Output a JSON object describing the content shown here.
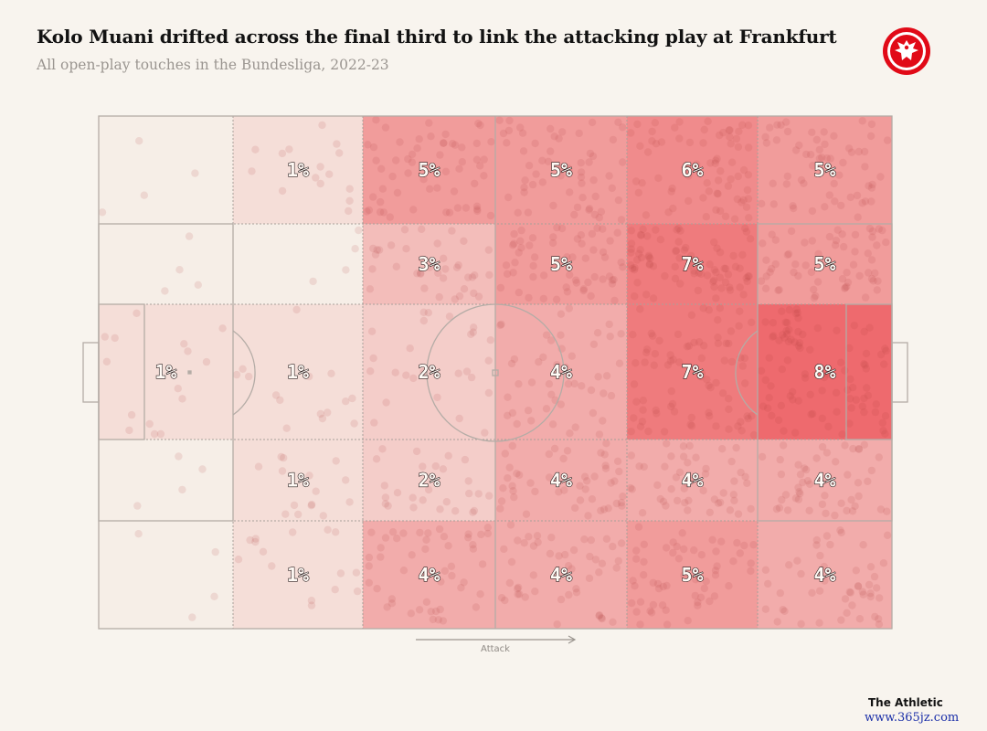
{
  "header": {
    "title": "Kolo Muani drifted across the final third to link the attacking play at Frankfurt",
    "subtitle": "All open-play touches in the Bundesliga, 2022-23"
  },
  "footer": {
    "source": "The Athletic",
    "watermark": "www.365jz.com"
  },
  "colors": {
    "background": "#f8f4ee",
    "heat_base": "#f6eee7",
    "heat_max": "#ee6a6e",
    "touch_dot": "#b43c3c",
    "pitch_lines": "#b4aca6",
    "crest_red": "#e10a17"
  },
  "chart_data": {
    "type": "heatmap",
    "title": "Kolo Muani drifted across the final third to link the attacking play at Frankfurt",
    "subtitle": "All open-play touches in the Bundesliga, 2022-23",
    "direction_label": "Attack",
    "columns": 6,
    "rows": 5,
    "values_pct": [
      [
        0,
        1,
        5,
        5,
        6,
        5
      ],
      [
        0,
        0,
        3,
        5,
        7,
        5
      ],
      [
        1,
        1,
        2,
        4,
        7,
        8
      ],
      [
        0,
        1,
        2,
        4,
        4,
        4
      ],
      [
        0,
        1,
        4,
        4,
        5,
        4
      ]
    ],
    "labels": [
      [
        "",
        "1%",
        "5%",
        "5%",
        "6%",
        "5%"
      ],
      [
        "",
        "",
        "3%",
        "5%",
        "7%",
        "5%"
      ],
      [
        "1%",
        "1%",
        "2%",
        "4%",
        "7%",
        "8%"
      ],
      [
        "",
        "1%",
        "2%",
        "4%",
        "4%",
        "4%"
      ],
      [
        "",
        "1%",
        "4%",
        "4%",
        "5%",
        "4%"
      ]
    ],
    "value_max": 8
  }
}
